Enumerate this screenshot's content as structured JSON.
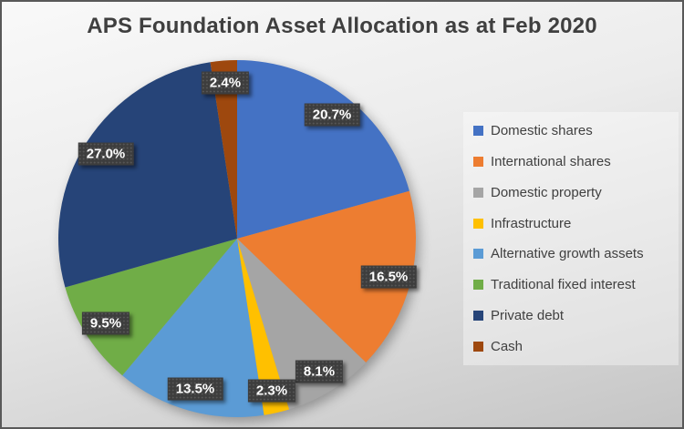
{
  "title": "APS Foundation Asset Allocation as at Feb 2020",
  "chart_data": {
    "type": "pie",
    "title": "APS Foundation Asset Allocation as at Feb 2020",
    "legend_position": "right",
    "start_angle_deg": 0,
    "direction": "clockwise",
    "data_label_format": "percent_one_decimal",
    "slices": [
      {
        "label": "Domestic shares",
        "value": 20.7,
        "color": "#4472C4",
        "data_label": "20.7%"
      },
      {
        "label": "International shares",
        "value": 16.5,
        "color": "#ED7D31",
        "data_label": "16.5%"
      },
      {
        "label": "Domestic property",
        "value": 8.1,
        "color": "#A5A5A5",
        "data_label": "8.1%"
      },
      {
        "label": "Infrastructure",
        "value": 2.3,
        "color": "#FFC000",
        "data_label": "2.3%"
      },
      {
        "label": "Alternative growth assets",
        "value": 13.5,
        "color": "#5B9BD5",
        "data_label": "13.5%"
      },
      {
        "label": "Traditional fixed interest",
        "value": 9.5,
        "color": "#70AD47",
        "data_label": "9.5%"
      },
      {
        "label": "Private debt",
        "value": 27.0,
        "color": "#264478",
        "data_label": "27.0%"
      },
      {
        "label": "Cash",
        "value": 2.4,
        "color": "#9E480E",
        "data_label": "2.4%"
      }
    ],
    "colors": {
      "title_text": "#3f3f3f",
      "legend_text": "#404040",
      "data_label_bg": "#3d3d3d",
      "data_label_text": "#ffffff"
    }
  }
}
